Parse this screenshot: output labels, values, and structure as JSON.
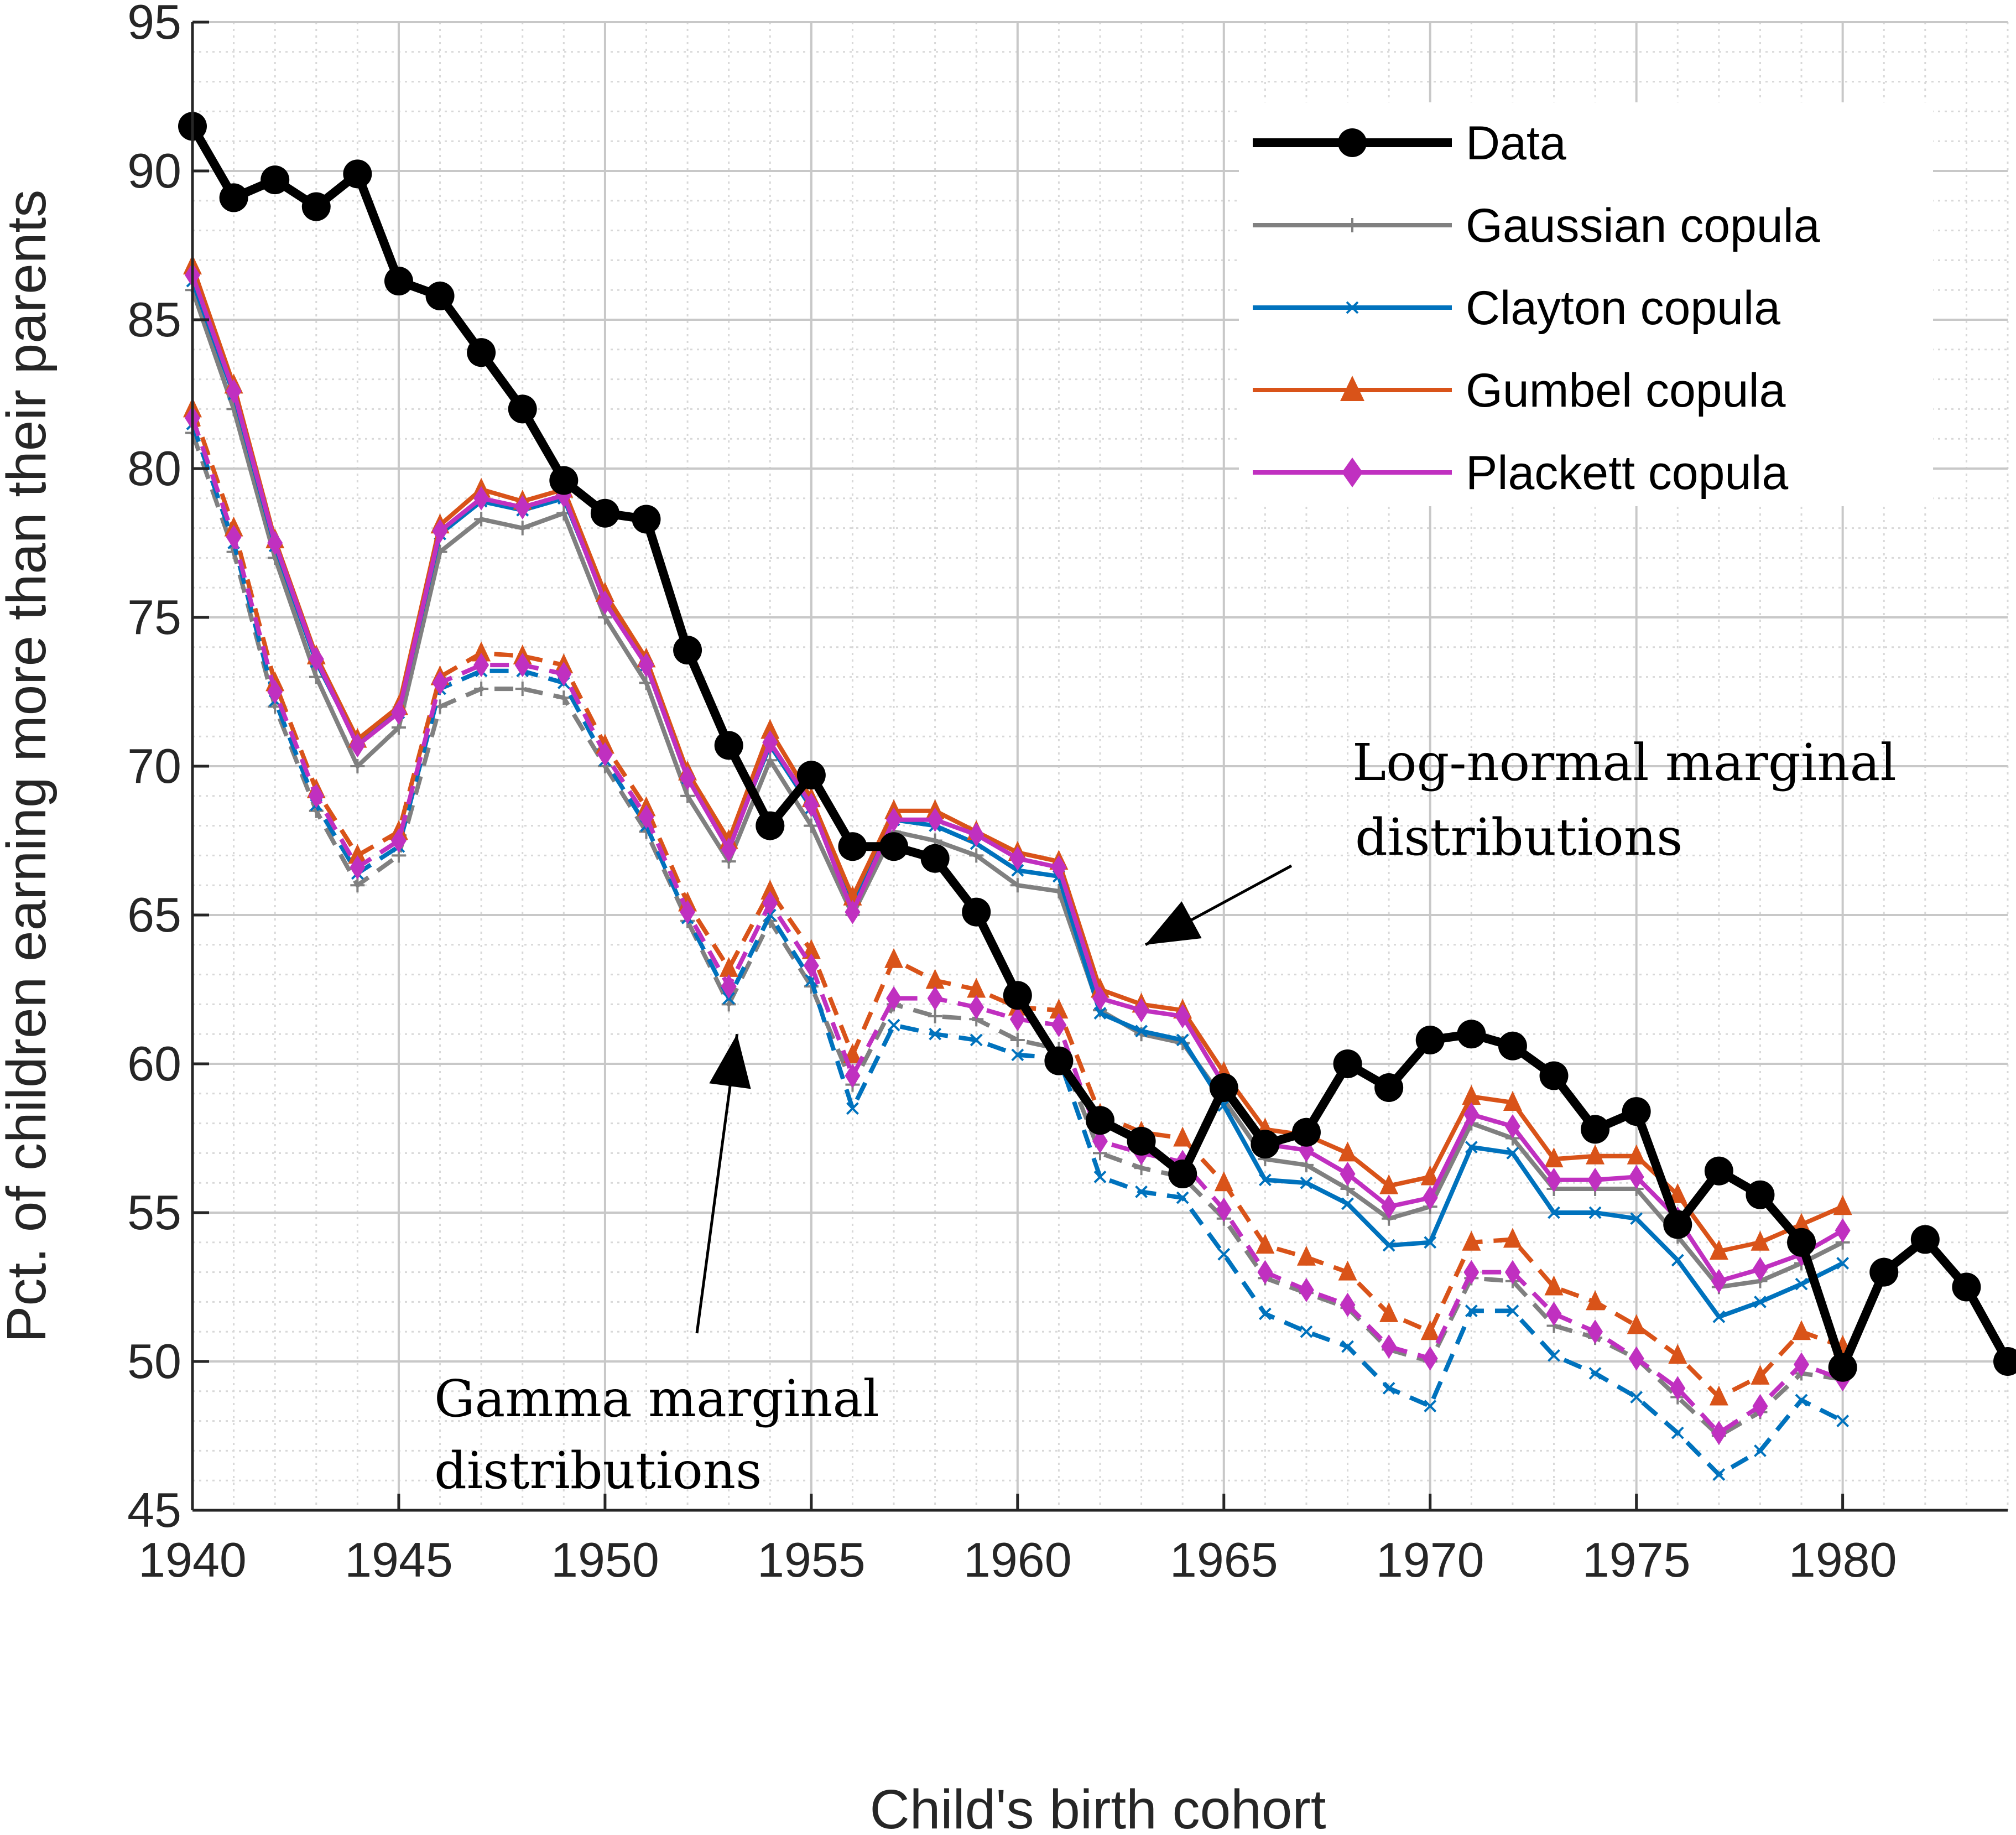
{
  "chart_data": {
    "type": "line",
    "xlabel": "Child's birth cohort",
    "ylabel": "Pct. of children earning more than their parents",
    "xlim": [
      1940,
      1984
    ],
    "ylim": [
      45,
      95
    ],
    "xticks": [
      1940,
      1945,
      1950,
      1955,
      1960,
      1965,
      1970,
      1975,
      1980
    ],
    "yticks": [
      45,
      50,
      55,
      60,
      65,
      70,
      75,
      80,
      85,
      90,
      95
    ],
    "grid": true,
    "minor_grid": true,
    "legend_position": "top-right",
    "colors": {
      "data": "#000000",
      "gaussian": "#808080",
      "clayton": "#0072bd",
      "gumbel": "#d95319",
      "plackett": "#c030c0"
    },
    "series": [
      {
        "name": "Data",
        "key": "data",
        "style": "solid",
        "marker": "circle",
        "x_start": 1940,
        "values": [
          91.5,
          89.1,
          89.7,
          88.8,
          89.9,
          86.3,
          85.8,
          83.9,
          82.0,
          79.6,
          78.5,
          78.3,
          73.9,
          70.7,
          68.0,
          69.7,
          67.3,
          67.3,
          66.9,
          65.1,
          62.3,
          60.1,
          58.1,
          57.4,
          56.3,
          59.2,
          57.3,
          57.7,
          60.0,
          59.2,
          60.8,
          61.0,
          60.6,
          59.6,
          57.8,
          58.4,
          54.6,
          56.4,
          55.6,
          54.0,
          49.8,
          53.0,
          54.1,
          52.5,
          50.0
        ]
      },
      {
        "name": "Gaussian copula",
        "key": "gaussian",
        "group": "Log-normal marginal distributions",
        "style": "solid",
        "marker": "plus",
        "x_start": 1940,
        "values": [
          86.0,
          82.0,
          77.0,
          73.0,
          70.0,
          71.3,
          77.2,
          78.3,
          78.0,
          78.5,
          75.0,
          72.8,
          69.0,
          66.8,
          70.2,
          68.0,
          65.0,
          67.8,
          67.5,
          67.0,
          66.0,
          65.8,
          61.8,
          61.0,
          60.7,
          58.8,
          56.8,
          56.6,
          55.8,
          54.8,
          55.2,
          58.0,
          57.5,
          55.8,
          55.8,
          55.8,
          54.2,
          52.5,
          52.7,
          53.3,
          54.0
        ]
      },
      {
        "name": "Clayton copula",
        "key": "clayton",
        "group": "Log-normal marginal distributions",
        "style": "solid",
        "marker": "x",
        "x_start": 1940,
        "values": [
          86.3,
          82.5,
          77.4,
          73.5,
          70.8,
          71.8,
          77.8,
          78.9,
          78.6,
          79.0,
          75.6,
          73.4,
          69.6,
          67.3,
          70.7,
          68.6,
          65.5,
          68.2,
          68.0,
          67.4,
          66.5,
          66.3,
          61.7,
          61.1,
          60.8,
          58.6,
          56.1,
          56.0,
          55.3,
          53.9,
          54.0,
          57.2,
          57.0,
          55.0,
          55.0,
          54.8,
          53.4,
          51.5,
          52.0,
          52.6,
          53.3
        ]
      },
      {
        "name": "Gumbel copula",
        "key": "gumbel",
        "group": "Log-normal marginal distributions",
        "style": "solid",
        "marker": "triangle",
        "x_start": 1940,
        "values": [
          86.8,
          82.8,
          77.6,
          73.7,
          70.9,
          72.0,
          78.1,
          79.3,
          78.9,
          79.3,
          75.8,
          73.6,
          69.8,
          67.5,
          71.2,
          68.9,
          65.6,
          68.5,
          68.5,
          67.8,
          67.1,
          66.8,
          62.5,
          62.0,
          61.8,
          59.7,
          57.8,
          57.6,
          57.0,
          55.9,
          56.2,
          58.9,
          58.7,
          56.8,
          56.9,
          56.9,
          55.6,
          53.7,
          54.0,
          54.6,
          55.2
        ]
      },
      {
        "name": "Plackett copula",
        "key": "plackett",
        "group": "Log-normal marginal distributions",
        "style": "solid",
        "marker": "diamond",
        "x_start": 1940,
        "values": [
          86.5,
          82.6,
          77.5,
          73.6,
          70.7,
          71.8,
          77.9,
          79.0,
          78.7,
          79.1,
          75.5,
          73.4,
          69.6,
          67.2,
          70.8,
          68.7,
          65.1,
          68.2,
          68.2,
          67.7,
          66.9,
          66.6,
          62.2,
          61.8,
          61.6,
          59.3,
          57.3,
          57.1,
          56.3,
          55.2,
          55.5,
          58.3,
          57.9,
          56.1,
          56.1,
          56.2,
          54.8,
          52.7,
          53.1,
          53.6,
          54.4
        ]
      },
      {
        "key": "gaussian",
        "group": "Gamma marginal distributions",
        "style": "dashed",
        "marker": "plus",
        "x_start": 1940,
        "values": [
          81.2,
          77.2,
          72.0,
          68.5,
          66.0,
          67.0,
          72.0,
          72.6,
          72.6,
          72.3,
          70.0,
          67.8,
          64.8,
          62.0,
          64.8,
          62.6,
          59.3,
          62.0,
          61.6,
          61.5,
          60.8,
          60.5,
          57.0,
          56.5,
          56.2,
          54.8,
          52.8,
          52.3,
          51.8,
          50.4,
          50.0,
          52.8,
          52.7,
          51.2,
          50.8,
          50.1,
          48.8,
          47.5,
          48.3,
          49.6,
          49.4
        ]
      },
      {
        "key": "clayton",
        "group": "Gamma marginal distributions",
        "style": "dashed",
        "marker": "x",
        "x_start": 1940,
        "values": [
          81.5,
          77.5,
          72.2,
          68.7,
          66.4,
          67.3,
          72.6,
          73.2,
          73.2,
          72.8,
          70.2,
          68.0,
          64.9,
          62.2,
          65.0,
          62.8,
          58.5,
          61.3,
          61.0,
          60.8,
          60.3,
          60.2,
          56.2,
          55.7,
          55.5,
          53.6,
          51.6,
          51.0,
          50.5,
          49.1,
          48.5,
          51.7,
          51.7,
          50.2,
          49.6,
          48.8,
          47.6,
          46.2,
          47.0,
          48.7,
          48.0
        ]
      },
      {
        "key": "gumbel",
        "group": "Gamma marginal distributions",
        "style": "dashed",
        "marker": "triangle",
        "x_start": 1940,
        "values": [
          82.0,
          78.0,
          72.8,
          69.2,
          67.0,
          67.8,
          73.0,
          73.8,
          73.7,
          73.4,
          70.7,
          68.6,
          65.4,
          63.2,
          65.8,
          63.8,
          60.3,
          63.5,
          62.8,
          62.5,
          61.9,
          61.8,
          58.3,
          57.7,
          57.5,
          56.0,
          53.9,
          53.5,
          53.0,
          51.6,
          51.0,
          54.0,
          54.1,
          52.5,
          52.0,
          51.2,
          50.2,
          48.8,
          49.5,
          51.0,
          50.5
        ]
      },
      {
        "key": "plackett",
        "group": "Gamma marginal distributions",
        "style": "dashed",
        "marker": "diamond",
        "x_start": 1940,
        "values": [
          81.7,
          77.7,
          72.5,
          69.0,
          66.6,
          67.5,
          72.8,
          73.4,
          73.4,
          73.1,
          70.4,
          68.3,
          65.1,
          62.6,
          65.4,
          63.3,
          59.6,
          62.2,
          62.2,
          61.9,
          61.5,
          61.3,
          57.4,
          57.0,
          56.7,
          55.1,
          53.0,
          52.4,
          51.9,
          50.5,
          50.1,
          53.0,
          53.0,
          51.6,
          51.0,
          50.1,
          49.1,
          47.6,
          48.5,
          49.9,
          49.4
        ]
      }
    ],
    "annotations": [
      {
        "key": "lognormal",
        "lines": [
          "Log-normal marginal",
          "distributions"
        ],
        "arrow_to": [
          1963.1,
          64.0
        ]
      },
      {
        "key": "gamma",
        "lines": [
          "Gamma marginal",
          "distributions"
        ],
        "arrow_to": [
          1953.2,
          61.0
        ]
      }
    ]
  }
}
